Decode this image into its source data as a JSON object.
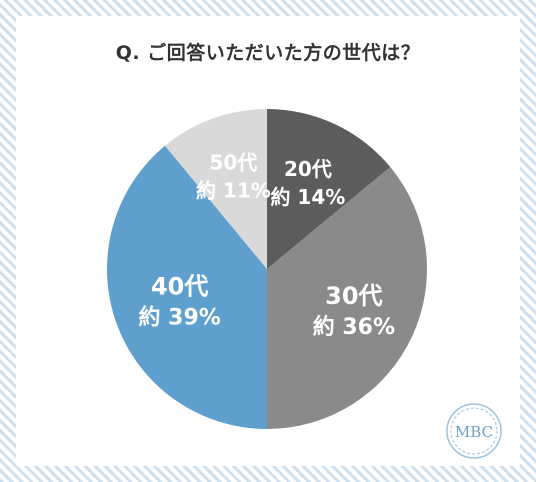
{
  "title": "Q. ご回答いただいた方の世代は？",
  "chart_data": {
    "type": "pie",
    "start_angle_deg": 0,
    "direction": "clockwise",
    "slices": [
      {
        "name": "20代",
        "value": 14,
        "label_top": "20代",
        "label_bottom": "約 14%",
        "color": "#5c5c5c"
      },
      {
        "name": "30代",
        "value": 36,
        "label_top": "30代",
        "label_bottom": "約 36%",
        "color": "#8a8a8a"
      },
      {
        "name": "40代",
        "value": 39,
        "label_top": "40代",
        "label_bottom": "約 39%",
        "color": "#5f9fce"
      },
      {
        "name": "50代",
        "value": 11,
        "label_top": "50代",
        "label_bottom": "約 11%",
        "color": "#d9d9d9"
      }
    ]
  },
  "logo": {
    "text": "MBC",
    "color": "#9fc2df"
  },
  "background": {
    "stripe_color": "#cfe0ef"
  }
}
